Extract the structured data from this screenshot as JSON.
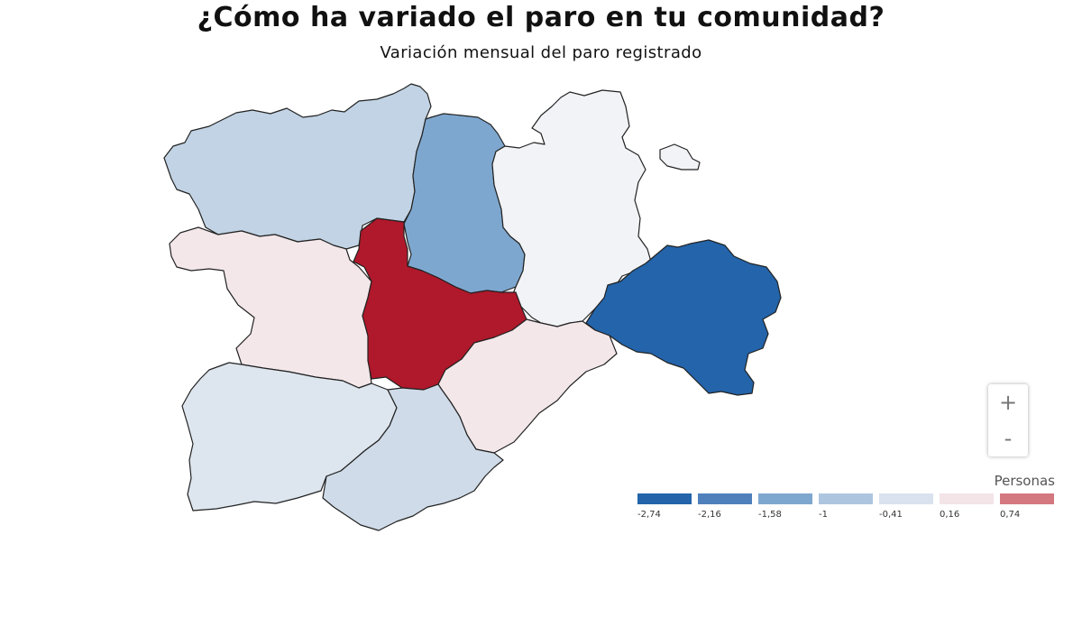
{
  "header": {
    "title": "¿Cómo ha variado el paro en tu comunidad?",
    "subtitle": "Variación mensual del paro registrado"
  },
  "map": {
    "regions": [
      {
        "id": "leon",
        "value_class": 5,
        "color": "#c1d3e4"
      },
      {
        "id": "palencia",
        "value_class": 3,
        "color": "#7ea7cf"
      },
      {
        "id": "burgos",
        "value_class": 6,
        "color": "#f1f3f6"
      },
      {
        "id": "zamora",
        "value_class": 7,
        "color": "#f3e7ea"
      },
      {
        "id": "valladolid",
        "value_class": 9,
        "color": "#b0182b"
      },
      {
        "id": "soria",
        "value_class": 1,
        "color": "#2364aa"
      },
      {
        "id": "segovia",
        "value_class": 7,
        "color": "#f3e7ea"
      },
      {
        "id": "salamanca",
        "value_class": 6,
        "color": "#dde5ee"
      },
      {
        "id": "avila",
        "value_class": 5,
        "color": "#cfdbe8"
      }
    ]
  },
  "zoom": {
    "in_label": "+",
    "out_label": "-"
  },
  "legend": {
    "title": "Personas",
    "items": [
      {
        "label": "-2,74",
        "color": "#2364aa"
      },
      {
        "label": "-2,16",
        "color": "#4f80bb"
      },
      {
        "label": "-1,58",
        "color": "#7ea7cf"
      },
      {
        "label": "-1",
        "color": "#aec5df"
      },
      {
        "label": "-0,41",
        "color": "#d9e2ee"
      },
      {
        "label": "0,16",
        "color": "#f3e4e7"
      },
      {
        "label": "0,74",
        "color": "#d47880"
      }
    ]
  }
}
